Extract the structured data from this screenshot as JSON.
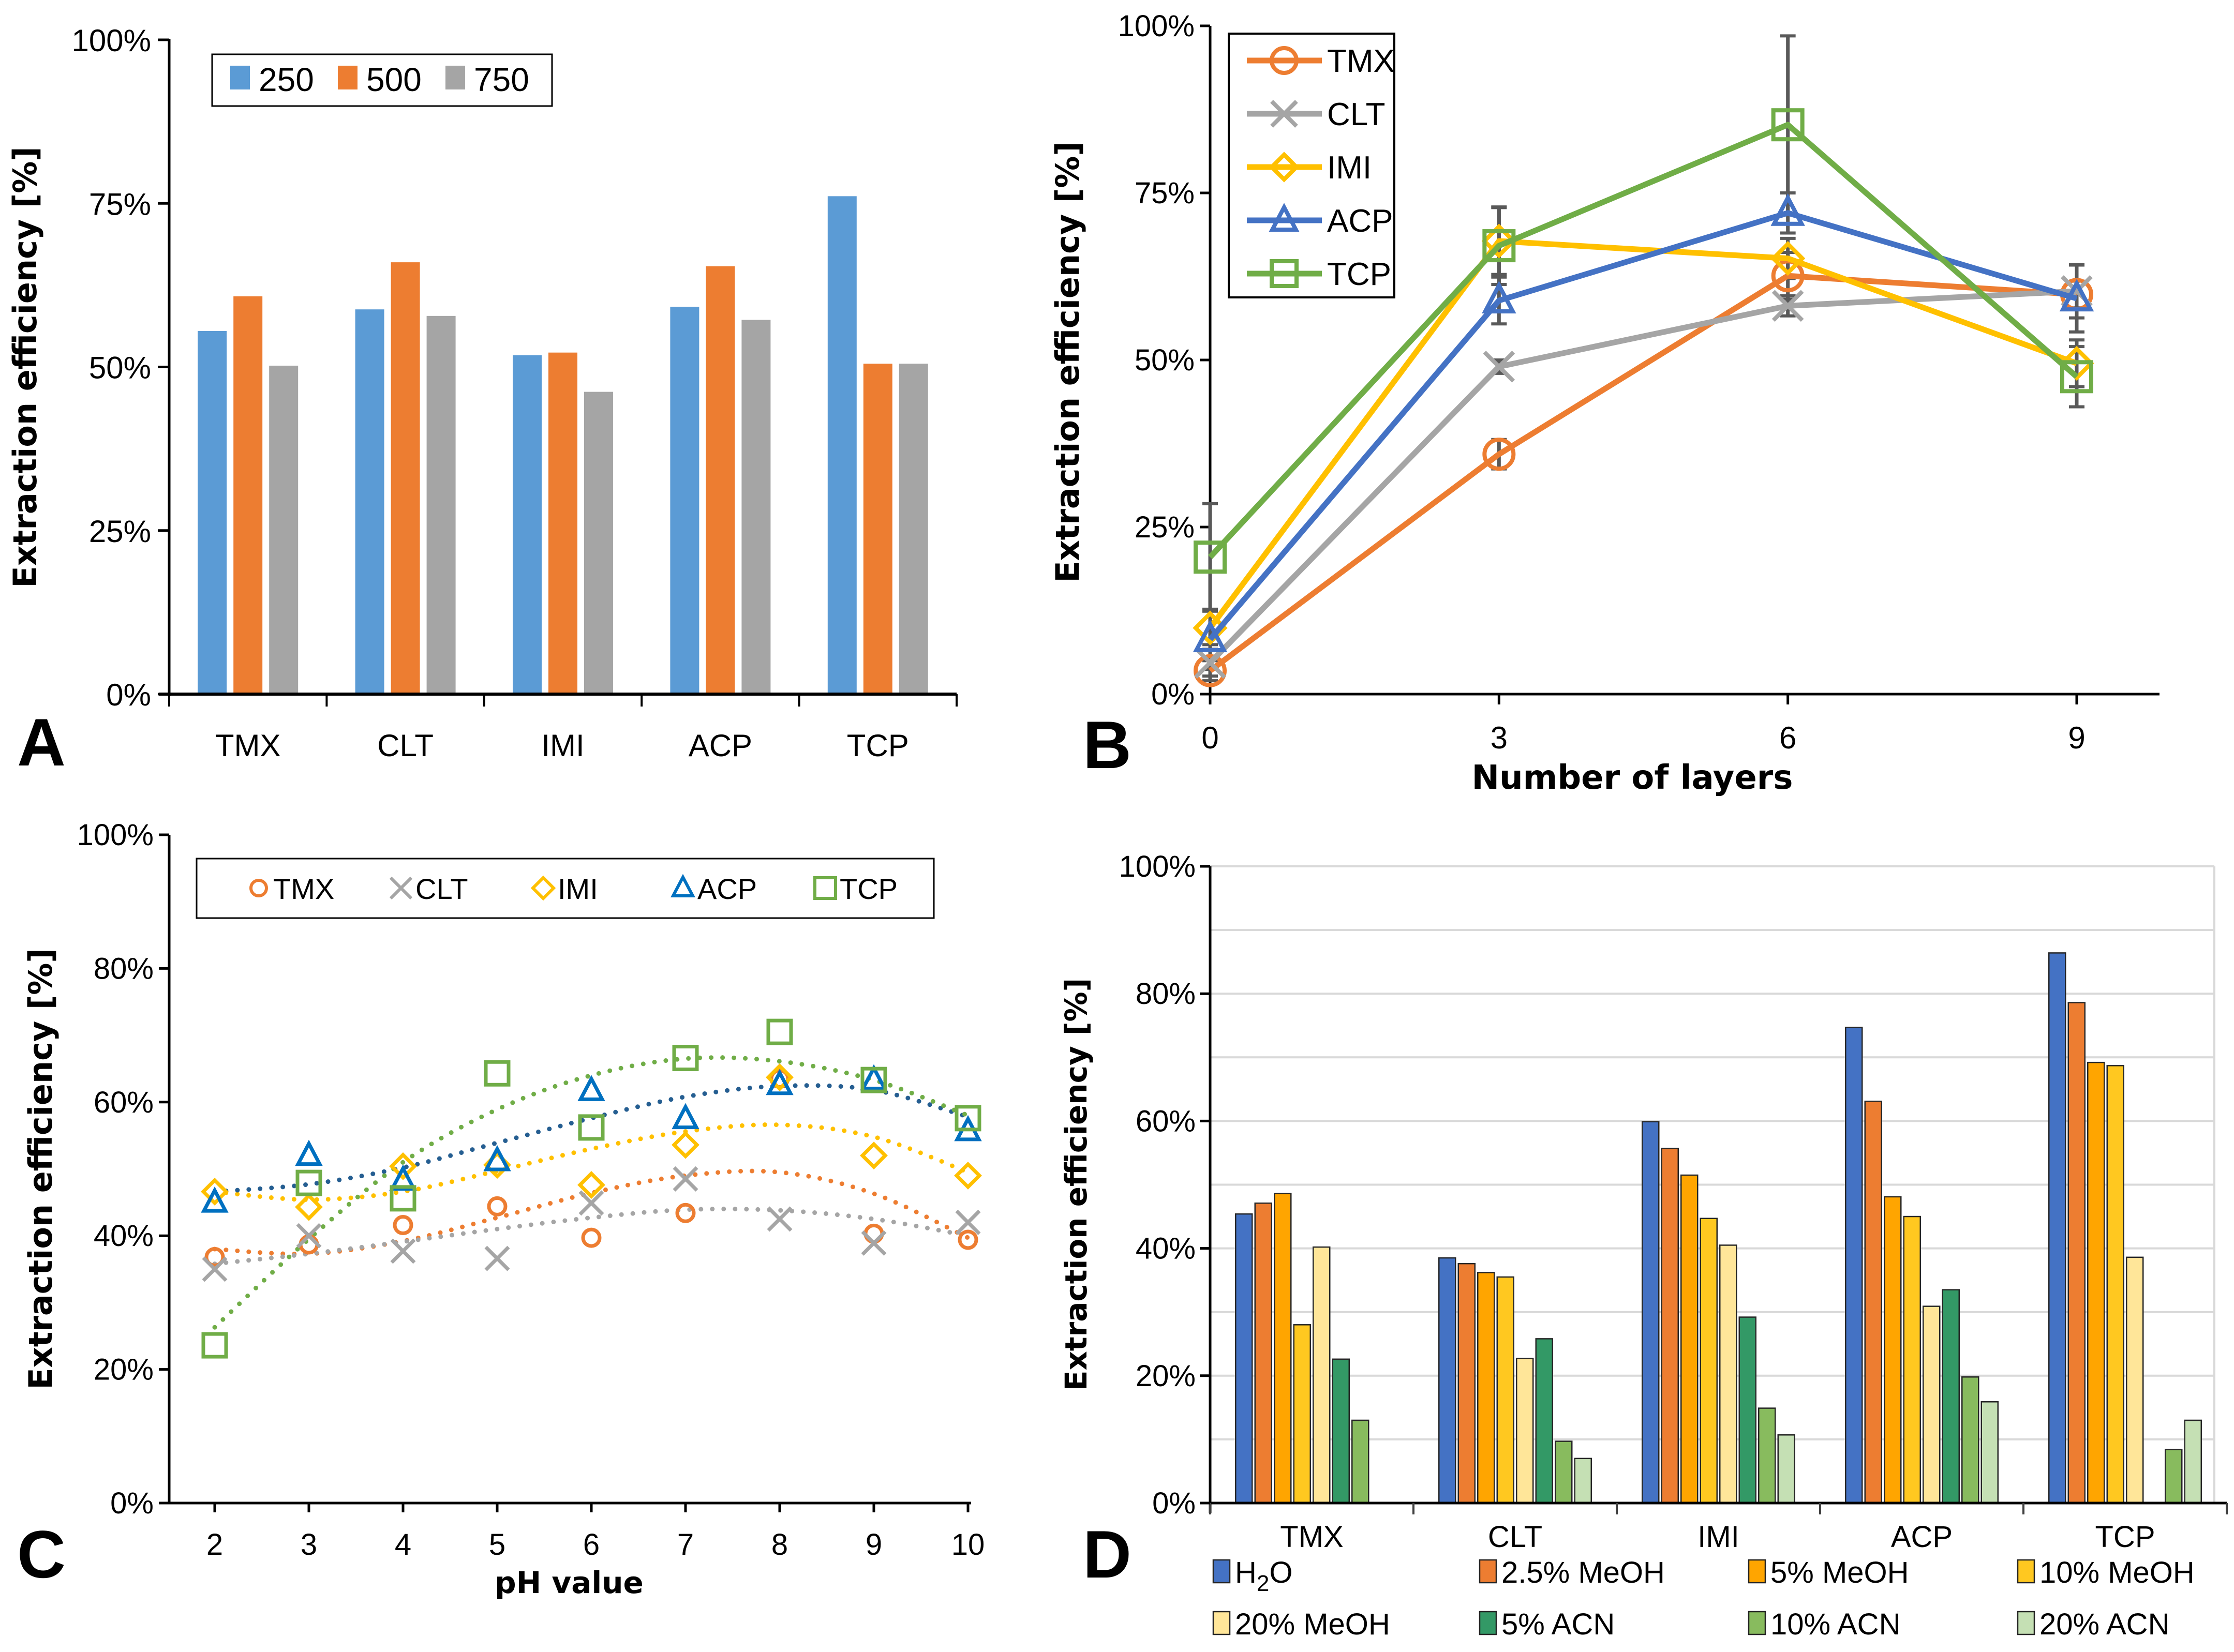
{
  "figure": {
    "panels": [
      "A",
      "B",
      "C",
      "D"
    ]
  },
  "chart_data": [
    {
      "id": "A",
      "type": "bar",
      "panel_letter": "A",
      "title": "",
      "xlabel": "",
      "ylabel": "Extraction efficiency [%]",
      "ylim": [
        0,
        100
      ],
      "yticks": [
        0,
        25,
        50,
        75,
        100
      ],
      "ytick_labels": [
        "0%",
        "25%",
        "50%",
        "75%",
        "100%"
      ],
      "categories": [
        "TMX",
        "CLT",
        "IMI",
        "ACP",
        "TCP"
      ],
      "series": [
        {
          "name": "250",
          "color": "#5b9bd5",
          "values": [
            55.5,
            58.8,
            51.8,
            59.2,
            76.1
          ]
        },
        {
          "name": "500",
          "color": "#ed7d31",
          "values": [
            60.8,
            66.0,
            52.2,
            65.4,
            50.5
          ]
        },
        {
          "name": "750",
          "color": "#a5a5a5",
          "values": [
            50.2,
            57.8,
            46.2,
            57.2,
            50.5
          ]
        }
      ],
      "legend": {
        "placement": "top-left",
        "orientation": "horizontal"
      },
      "grid": false
    },
    {
      "id": "B",
      "type": "line",
      "panel_letter": "B",
      "title": "",
      "xlabel": "Number of layers",
      "ylabel": "Extraction efficiency [%]",
      "x": [
        0,
        3,
        6,
        9
      ],
      "xlim": [
        0,
        10.5
      ],
      "xticks": [
        0,
        3,
        6,
        9
      ],
      "xtick_labels": [
        "0",
        "3",
        "6",
        "9"
      ],
      "ylim": [
        0,
        100
      ],
      "yticks": [
        0,
        25,
        50,
        75,
        100
      ],
      "ytick_labels": [
        "0%",
        "25%",
        "50%",
        "75%",
        "100%"
      ],
      "series": [
        {
          "name": "TMX",
          "color": "#ed7d31",
          "marker": "circle",
          "values": [
            3.5,
            35.9,
            62.6,
            59.8
          ],
          "err": [
            1.5,
            2.2,
            3.5,
            2.0
          ]
        },
        {
          "name": "CLT",
          "color": "#a5a5a5",
          "marker": "x",
          "values": [
            4.7,
            49.0,
            58.1,
            60.3
          ],
          "err": [
            2.0,
            1.0,
            1.5,
            4.0
          ]
        },
        {
          "name": "IMI",
          "color": "#ffc000",
          "marker": "diamond",
          "values": [
            9.9,
            67.8,
            65.2,
            49.5
          ],
          "err": [
            2.5,
            5.0,
            3.0,
            3.5
          ]
        },
        {
          "name": "ACP",
          "color": "#4472c4",
          "marker": "triangle",
          "values": [
            8.2,
            58.9,
            72.0,
            59.2
          ],
          "err": [
            4.5,
            3.5,
            3.0,
            5.0
          ]
        },
        {
          "name": "TCP",
          "color": "#70ad47",
          "marker": "square",
          "values": [
            20.5,
            67.1,
            85.2,
            47.5
          ],
          "err": [
            8.0,
            5.8,
            13.3,
            4.5
          ]
        }
      ],
      "error_bar_color": "#595959",
      "legend": {
        "placement": "top-left",
        "orientation": "vertical"
      },
      "grid": false
    },
    {
      "id": "C",
      "type": "scatter",
      "panel_letter": "C",
      "title": "",
      "xlabel": "pH value",
      "ylabel": "Extraction efficiency [%]",
      "x": [
        2,
        3,
        4,
        5,
        6,
        7,
        8,
        9,
        10
      ],
      "xlim": [
        1,
        10
      ],
      "xticks": [
        2,
        3,
        4,
        5,
        6,
        7,
        8,
        9,
        10
      ],
      "xtick_labels": [
        "2",
        "3",
        "4",
        "5",
        "6",
        "7",
        "8",
        "9",
        "10"
      ],
      "ylim": [
        0,
        100
      ],
      "yticks": [
        0,
        20,
        40,
        60,
        80,
        100
      ],
      "ytick_labels": [
        "0%",
        "20%",
        "40%",
        "60%",
        "80%",
        "100%"
      ],
      "series": [
        {
          "name": "TMX",
          "color": "#ed7d31",
          "marker": "circle",
          "values": [
            36.8,
            38.7,
            41.6,
            44.4,
            39.7,
            43.4,
            63.5,
            40.3,
            39.4
          ],
          "trend_color": "#ed7d31",
          "trendline": [
            38.0,
            37.3,
            39.2,
            42.7,
            46.4,
            49.0,
            49.5,
            46.3,
            39.7
          ]
        },
        {
          "name": "CLT",
          "color": "#a5a5a5",
          "marker": "x",
          "values": [
            35.0,
            40.0,
            37.7,
            36.6,
            44.9,
            48.5,
            42.5,
            38.9,
            42.0
          ],
          "trend_color": "#a5a5a5",
          "trendline": [
            35.8,
            37.3,
            39.1,
            41.0,
            42.7,
            43.9,
            43.8,
            42.5,
            40.0
          ]
        },
        {
          "name": "IMI",
          "color": "#ffc000",
          "marker": "diamond",
          "values": [
            46.6,
            44.3,
            50.4,
            50.6,
            47.6,
            53.6,
            63.7,
            52.0,
            49.0
          ],
          "trend_color": "#ffc000",
          "trendline": [
            46.6,
            45.4,
            46.6,
            49.7,
            53.0,
            55.6,
            56.6,
            54.8,
            49.5
          ]
        },
        {
          "name": "ACP",
          "color": "#0070c0",
          "marker": "triangle",
          "values": [
            45.0,
            52.0,
            48.3,
            51.2,
            61.7,
            57.5,
            62.6,
            63.3,
            55.7
          ],
          "trend_color": "#255e91",
          "trendline": [
            46.6,
            47.7,
            50.2,
            53.9,
            57.6,
            60.8,
            62.4,
            61.8,
            57.8
          ]
        },
        {
          "name": "TCP",
          "color": "#70ad47",
          "marker": "square",
          "values": [
            23.6,
            47.9,
            45.6,
            64.3,
            56.2,
            66.6,
            70.5,
            63.3,
            57.6
          ],
          "trend_color": "#70ad47",
          "trendline": [
            26.3,
            39.5,
            51.0,
            58.9,
            64.0,
            66.5,
            66.1,
            63.3,
            58.0
          ]
        }
      ],
      "trendline_style": "dotted polynomial",
      "legend": {
        "placement": "top",
        "orientation": "horizontal"
      },
      "grid": false
    },
    {
      "id": "D",
      "type": "bar",
      "panel_letter": "D",
      "title": "",
      "xlabel": "",
      "ylabel": "Extraction efficiency [%]",
      "ylim": [
        0,
        100
      ],
      "yticks": [
        0,
        20,
        40,
        60,
        80,
        100
      ],
      "ytick_labels": [
        "0%",
        "20%",
        "40%",
        "60%",
        "80%",
        "100%"
      ],
      "minor_gridlines_every": 10,
      "categories": [
        "TMX",
        "CLT",
        "IMI",
        "ACP",
        "TCP"
      ],
      "series": [
        {
          "name": "H2O",
          "label_main": "H",
          "label_sub": "2",
          "label_tail": "O",
          "color": "#4472c4",
          "values": [
            45.4,
            38.5,
            59.9,
            74.7,
            86.4
          ]
        },
        {
          "name": "2.5% MeOH",
          "color": "#ed7d31",
          "values": [
            47.1,
            37.6,
            55.7,
            63.1,
            78.6
          ]
        },
        {
          "name": "5% MeOH",
          "color": "#ffa500",
          "values": [
            48.6,
            36.2,
            51.5,
            48.1,
            69.2
          ]
        },
        {
          "name": "10% MeOH",
          "color": "#ffc820",
          "values": [
            28.0,
            35.5,
            44.7,
            45.0,
            68.7
          ]
        },
        {
          "name": "20% MeOH",
          "color": "#ffe699",
          "values": [
            40.2,
            22.7,
            40.5,
            30.9,
            38.6
          ]
        },
        {
          "name": "5% ACN",
          "color": "#339966",
          "values": [
            22.6,
            25.8,
            29.2,
            33.5,
            null
          ]
        },
        {
          "name": "10% ACN",
          "color": "#88bb5e",
          "values": [
            13.0,
            9.7,
            14.9,
            19.8,
            8.4
          ]
        },
        {
          "name": "20% ACN",
          "color": "#c5e0b4",
          "values": [
            null,
            7.0,
            10.7,
            15.9,
            13.0
          ]
        }
      ],
      "legend": {
        "placement": "bottom",
        "orientation": "grid-4-columns"
      },
      "grid": true
    }
  ]
}
